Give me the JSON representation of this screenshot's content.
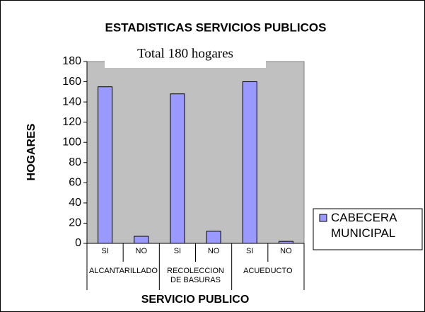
{
  "chart_data": {
    "type": "bar",
    "title": "ESTADISTICAS SERVICIOS PUBLICOS",
    "subtitle": "Total  180  hogares",
    "y_label": "HOGARES",
    "x_label": "SERVICIO PUBLICO",
    "category_groups": [
      {
        "name": "ALCANTARILLADO",
        "categories": [
          "SI",
          "NO"
        ]
      },
      {
        "name": "RECOLECCION DE BASURAS",
        "categories": [
          "SI",
          "NO"
        ]
      },
      {
        "name": "ACUEDUCTO",
        "categories": [
          "SI",
          "NO"
        ]
      }
    ],
    "series": [
      {
        "name": "CABECERA MUNICIPAL",
        "color": "#9999ff",
        "values": [
          155,
          7,
          148,
          12,
          160,
          2
        ]
      }
    ],
    "ylim": [
      0,
      180
    ],
    "yticks": [
      0,
      20,
      40,
      60,
      80,
      100,
      120,
      140,
      160,
      180
    ],
    "plot_background": "#c0c0c0",
    "legend": "right"
  }
}
